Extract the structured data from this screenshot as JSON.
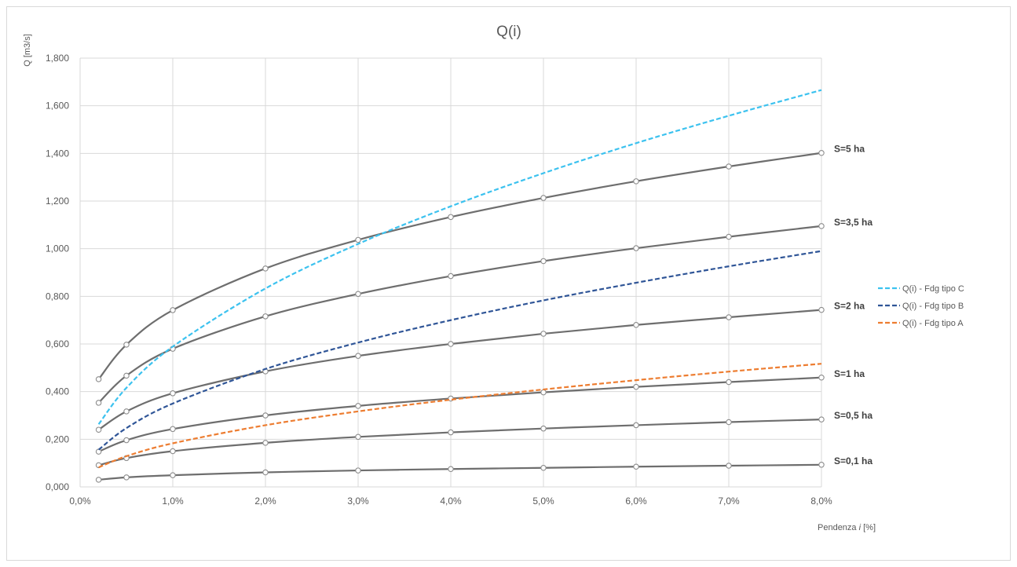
{
  "chart_data": {
    "type": "line",
    "title": "Q(i)",
    "ylabel": "Q [m3/s]",
    "xlabel_prefix": "Pendenza ",
    "xlabel_italic": "i",
    "xlabel_suffix": " [%]",
    "xlim": [
      0,
      8
    ],
    "ylim": [
      0,
      1.8
    ],
    "grid": true,
    "legend_position": "right",
    "x_ticks": [
      0,
      1,
      2,
      3,
      4,
      5,
      6,
      7,
      8
    ],
    "x_tick_labels": [
      "0,0%",
      "1,0%",
      "2,0%",
      "3,0%",
      "4,0%",
      "5,0%",
      "6,0%",
      "7,0%",
      "8,0%"
    ],
    "y_ticks": [
      0,
      0.2,
      0.4,
      0.6,
      0.8,
      1.0,
      1.2,
      1.4,
      1.6,
      1.8
    ],
    "y_tick_labels": [
      "0,000",
      "0,200",
      "0,400",
      "0,600",
      "0,800",
      "1,000",
      "1,200",
      "1,400",
      "1,600",
      "1,800"
    ],
    "x": [
      0.2,
      0.5,
      1,
      2,
      3,
      4,
      5,
      6,
      7,
      8
    ],
    "series": [
      {
        "name": "S=5 ha",
        "style": "solid",
        "color": "#6e6e6e",
        "markers": true,
        "values": [
          0.452,
          0.597,
          0.742,
          0.917,
          1.037,
          1.133,
          1.213,
          1.283,
          1.345,
          1.402
        ]
      },
      {
        "name": "S=3,5 ha",
        "style": "solid",
        "color": "#6e6e6e",
        "markers": true,
        "values": [
          0.353,
          0.467,
          0.58,
          0.716,
          0.81,
          0.885,
          0.948,
          1.002,
          1.05,
          1.095
        ]
      },
      {
        "name": "S=2 ha",
        "style": "solid",
        "color": "#6e6e6e",
        "markers": true,
        "values": [
          0.24,
          0.317,
          0.393,
          0.485,
          0.55,
          0.6,
          0.643,
          0.68,
          0.712,
          0.743
        ]
      },
      {
        "name": "S=1 ha",
        "style": "solid",
        "color": "#6e6e6e",
        "markers": true,
        "values": [
          0.148,
          0.196,
          0.243,
          0.3,
          0.34,
          0.371,
          0.397,
          0.42,
          0.44,
          0.459
        ]
      },
      {
        "name": "S=0,5 ha",
        "style": "solid",
        "color": "#6e6e6e",
        "markers": true,
        "values": [
          0.091,
          0.121,
          0.15,
          0.185,
          0.21,
          0.229,
          0.245,
          0.259,
          0.272,
          0.283
        ]
      },
      {
        "name": "S=0,1 ha",
        "style": "solid",
        "color": "#6e6e6e",
        "markers": true,
        "values": [
          0.03,
          0.04,
          0.049,
          0.061,
          0.069,
          0.075,
          0.08,
          0.085,
          0.089,
          0.093
        ]
      },
      {
        "name": "Q(i) - Fdg tipo C",
        "style": "dashed",
        "color": "#3cc2ef",
        "markers": false,
        "values": [
          0.263,
          0.416,
          0.589,
          0.833,
          1.02,
          1.178,
          1.317,
          1.443,
          1.558,
          1.666
        ]
      },
      {
        "name": "Q(i) - Fdg tipo B",
        "style": "dashed",
        "color": "#2f5597",
        "markers": false,
        "values": [
          0.156,
          0.247,
          0.35,
          0.495,
          0.606,
          0.7,
          0.783,
          0.857,
          0.926,
          0.99
        ]
      },
      {
        "name": "Q(i) - Fdg tipo A",
        "style": "dashed",
        "color": "#ed7d31",
        "markers": false,
        "values": [
          0.082,
          0.129,
          0.183,
          0.259,
          0.317,
          0.366,
          0.409,
          0.448,
          0.484,
          0.517
        ]
      }
    ],
    "legend": [
      "Q(i) - Fdg tipo C",
      "Q(i) - Fdg tipo B",
      "Q(i) - Fdg tipo A"
    ],
    "end_labels": [
      "S=5 ha",
      "S=3,5 ha",
      "S=2 ha",
      "S=1 ha",
      "S=0,5 ha",
      "S=0,1 ha"
    ]
  }
}
